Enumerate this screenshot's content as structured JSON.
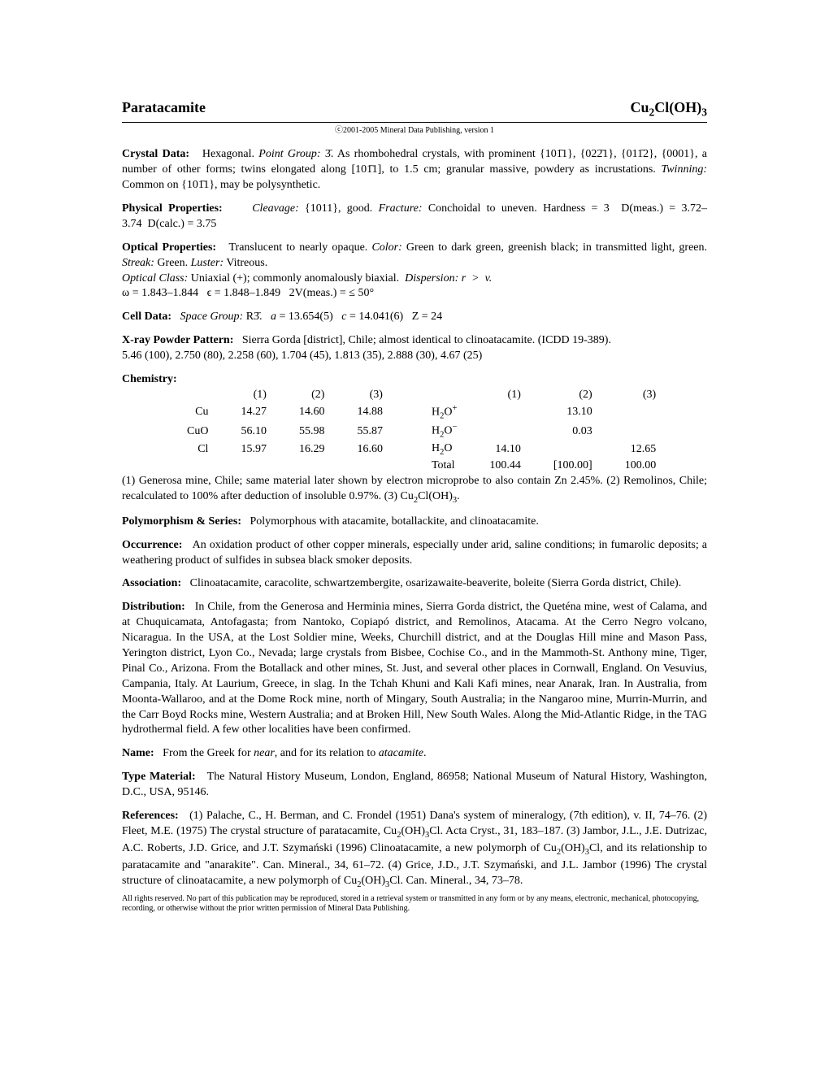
{
  "header": {
    "mineral_name": "Paratacamite",
    "formula_html": "Cu<sub>2</sub>Cl(OH)<sub>3</sub>",
    "copyright": "ⓒ2001-2005 Mineral Data Publishing, version 1"
  },
  "crystal_data": {
    "label": "Crystal Data:",
    "text": "Hexagonal. <i>Point Group:</i> 3̄. As rhombohedral crystals, with prominent {101̄1}, {022̄1}, {011̄2}, {0001}, a number of other forms; twins elongated along [101̄1], to 1.5 cm; granular massive, powdery as incrustations. <i>Twinning:</i> Common on {101̄1}, may be polysynthetic."
  },
  "physical": {
    "label": "Physical Properties:",
    "text": "<i>Cleavage:</i> {1011}, good. <i>Fracture:</i> Conchoidal to uneven. Hardness = 3&nbsp;&nbsp;D(meas.) = 3.72–3.74&nbsp;&nbsp;D(calc.) = 3.75"
  },
  "optical": {
    "label": "Optical Properties:",
    "text": "Translucent to nearly opaque. <i>Color:</i> Green to dark green, greenish black; in transmitted light, green. <i>Streak:</i> Green. <i>Luster:</i> Vitreous.<br><i>Optical Class:</i> Uniaxial (+); commonly anomalously biaxial.&nbsp;&nbsp;<i>Dispersion: r &nbsp;&gt;&nbsp; v.</i><br>ω = 1.843–1.844&nbsp;&nbsp;&nbsp;ϵ = 1.848–1.849&nbsp;&nbsp;&nbsp;2V(meas.) = ≤ 50°"
  },
  "cell_data": {
    "label": "Cell Data:",
    "text": "<i>Space Group:</i> R3̄.&nbsp;&nbsp;&nbsp;<i>a</i> = 13.654(5)&nbsp;&nbsp;&nbsp;<i>c</i> = 14.041(6)&nbsp;&nbsp;&nbsp;Z = 24"
  },
  "xray": {
    "label": "X-ray Powder Pattern:",
    "text": "Sierra Gorda [district], Chile; almost identical to clinoatacamite. (ICDD 19-389).<br>5.46 (100), 2.750 (80), 2.258 (60), 1.704 (45), 1.813 (35), 2.888 (30), 4.67 (25)"
  },
  "chemistry": {
    "label": "Chemistry:",
    "headers": [
      "(1)",
      "(2)",
      "(3)",
      "",
      "(1)",
      "(2)",
      "(3)"
    ],
    "rows": [
      {
        "el": "Cu",
        "c1": "14.27",
        "c2": "14.60",
        "c3": "14.88",
        "sp": "H<sub>2</sub>O<sup>+</sup>",
        "d1": "",
        "d2": "13.10",
        "d3": ""
      },
      {
        "el": "CuO",
        "c1": "56.10",
        "c2": "55.98",
        "c3": "55.87",
        "sp": "H<sub>2</sub>O<sup>−</sup>",
        "d1": "",
        "d2": "0.03",
        "d3": ""
      },
      {
        "el": "Cl",
        "c1": "15.97",
        "c2": "16.29",
        "c3": "16.60",
        "sp": "H<sub>2</sub>O",
        "d1": "14.10",
        "d2": "",
        "d3": "12.65"
      },
      {
        "el": "",
        "c1": "",
        "c2": "",
        "c3": "",
        "sp": "Total",
        "d1": "100.44",
        "d2": "[100.00]",
        "d3": "100.00"
      }
    ],
    "footnote": "(1) Generosa mine, Chile; same material later shown by electron microprobe to also contain Zn 2.45%. (2) Remolinos, Chile; recalculated to 100% after deduction of insoluble 0.97%. (3) Cu<sub>2</sub>Cl(OH)<sub>3</sub>."
  },
  "polymorphism": {
    "label": "Polymorphism & Series:",
    "text": "Polymorphous with atacamite, botallackite, and clinoatacamite."
  },
  "occurrence": {
    "label": "Occurrence:",
    "text": "An oxidation product of other copper minerals, especially under arid, saline conditions; in fumarolic deposits; a weathering product of sulfides in subsea black smoker deposits."
  },
  "association": {
    "label": "Association:",
    "text": "Clinoatacamite, caracolite, schwartzembergite, osarizawaite-beaverite, boleite (Sierra Gorda district, Chile)."
  },
  "distribution": {
    "label": "Distribution:",
    "text": "In Chile, from the Generosa and Herminia mines, Sierra Gorda district, the Queténa mine, west of Calama, and at Chuquicamata, Antofagasta; from Nantoko, Copiapó district, and Remolinos, Atacama. At the Cerro Negro volcano, Nicaragua. In the USA, at the Lost Soldier mine, Weeks, Churchill district, and at the Douglas Hill mine and Mason Pass, Yerington district, Lyon Co., Nevada; large crystals from Bisbee, Cochise Co., and in the Mammoth-St. Anthony mine, Tiger, Pinal Co., Arizona. From the Botallack and other mines, St. Just, and several other places in Cornwall, England. On Vesuvius, Campania, Italy. At Laurium, Greece, in slag. In the Tchah Khuni and Kali Kafi mines, near Anarak, Iran. In Australia, from Moonta-Wallaroo, and at the Dome Rock mine, north of Mingary, South Australia; in the Nangaroo mine, Murrin-Murrin, and the Carr Boyd Rocks mine, Western Australia; and at Broken Hill, New South Wales. Along the Mid-Atlantic Ridge, in the TAG hydrothermal field. A few other localities have been confirmed."
  },
  "name": {
    "label": "Name:",
    "text": "From the Greek for <i>near</i>, and for its relation to <i>atacamite</i>."
  },
  "type_material": {
    "label": "Type Material:",
    "text": "The Natural History Museum, London, England, 86958; National Museum of Natural History, Washington, D.C., USA, 95146."
  },
  "references": {
    "label": "References:",
    "text": "(1) Palache, C., H. Berman, and C. Frondel (1951) Dana's system of mineralogy, (7th edition), v. II, 74–76. (2) Fleet, M.E. (1975) The crystal structure of paratacamite, Cu<sub>2</sub>(OH)<sub>3</sub>Cl. Acta Cryst., 31, 183–187. (3) Jambor, J.L., J.E. Dutrizac, A.C. Roberts, J.D. Grice, and J.T. Szymański (1996) Clinoatacamite, a new polymorph of Cu<sub>2</sub>(OH)<sub>3</sub>Cl, and its relationship to paratacamite and \"anarakite\". Can. Mineral., 34, 61–72. (4) Grice, J.D., J.T. Szymański, and J.L. Jambor (1996) The crystal structure of clinoatacamite, a new polymorph of Cu<sub>2</sub>(OH)<sub>3</sub>Cl. Can. Mineral., 34, 73–78."
  },
  "legal": "All rights reserved. No part of this publication may be reproduced, stored in a retrieval system or transmitted in any form or by any means, electronic, mechanical, photocopying, recording, or otherwise without the prior written permission of Mineral Data Publishing."
}
